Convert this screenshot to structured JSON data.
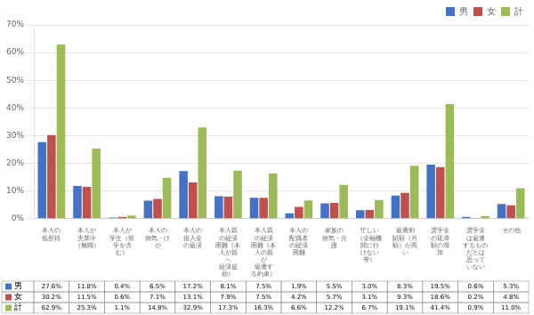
{
  "chart_data": {
    "type": "bar",
    "categories": [
      "本人の\n低所得",
      "本人が\n失業中\n（無職）",
      "本人が\n学生（留\n学を含\nむ）",
      "本人の\n病気・け\nが",
      "本人の\n借入金\nの返済",
      "本人親\nの経済\n困難（本\n人が親\nへ\n経済援\n助）",
      "本人親\nの経済\n困難（本\n人の親\nが\n返還す\nる約束）",
      "本人の\n配偶者\nの経済\n困難",
      "家族の\n病気・介\n護",
      "忙しい\n（金融機\n関に行\nけない\n等）",
      "返還割\n賦額（月\n額）が高\nい",
      "奨学金\nの延滞\n額の増\n加",
      "奨学金\nは返還\nするもの\nだとは\n思って\nいない",
      "その他"
    ],
    "series": [
      {
        "name": "男",
        "color": "#4472C4",
        "values": [
          27.6,
          11.8,
          0.4,
          6.5,
          17.2,
          8.1,
          7.5,
          1.9,
          5.5,
          3.0,
          8.3,
          19.5,
          0.6,
          5.3
        ],
        "value_labels": [
          "27.6%",
          "11.8%",
          "0.4%",
          "6.5%",
          "17.2%",
          "8.1%",
          "7.5%",
          "1.9%",
          "5.5%",
          "3.0%",
          "8.3%",
          "19.5%",
          "0.6%",
          "5.3%"
        ]
      },
      {
        "name": "女",
        "color": "#C0504D",
        "values": [
          30.2,
          11.5,
          0.6,
          7.1,
          13.1,
          7.9,
          7.5,
          4.2,
          5.7,
          3.1,
          9.3,
          18.6,
          0.2,
          4.8
        ],
        "value_labels": [
          "30.2%",
          "11.5%",
          "0.6%",
          "7.1%",
          "13.1%",
          "7.9%",
          "7.5%",
          "4.2%",
          "5.7%",
          "3.1%",
          "9.3%",
          "18.6%",
          "0.2%",
          "4.8%"
        ]
      },
      {
        "name": "計",
        "color": "#9BBB59",
        "values": [
          62.9,
          25.3,
          1.1,
          14.8,
          32.9,
          17.3,
          16.3,
          6.6,
          12.2,
          6.7,
          19.1,
          41.4,
          0.9,
          11.0
        ],
        "value_labels": [
          "62.9%",
          "25.3%",
          "1.1%",
          "14.8%",
          "32.9%",
          "17.3%",
          "16.3%",
          "6.6%",
          "12.2%",
          "6.7%",
          "19.1%",
          "41.4%",
          "0.9%",
          "11.0%"
        ]
      }
    ],
    "ylim": [
      0,
      70
    ],
    "yticks": [
      {
        "value": 0,
        "label": "0%"
      },
      {
        "value": 10,
        "label": "10%"
      },
      {
        "value": 20,
        "label": "20%"
      },
      {
        "value": 30,
        "label": "30%"
      },
      {
        "value": 40,
        "label": "40%"
      },
      {
        "value": 50,
        "label": "50%"
      },
      {
        "value": 60,
        "label": "60%"
      },
      {
        "value": 70,
        "label": "70%"
      }
    ],
    "grid": true,
    "legend": "upper right"
  }
}
